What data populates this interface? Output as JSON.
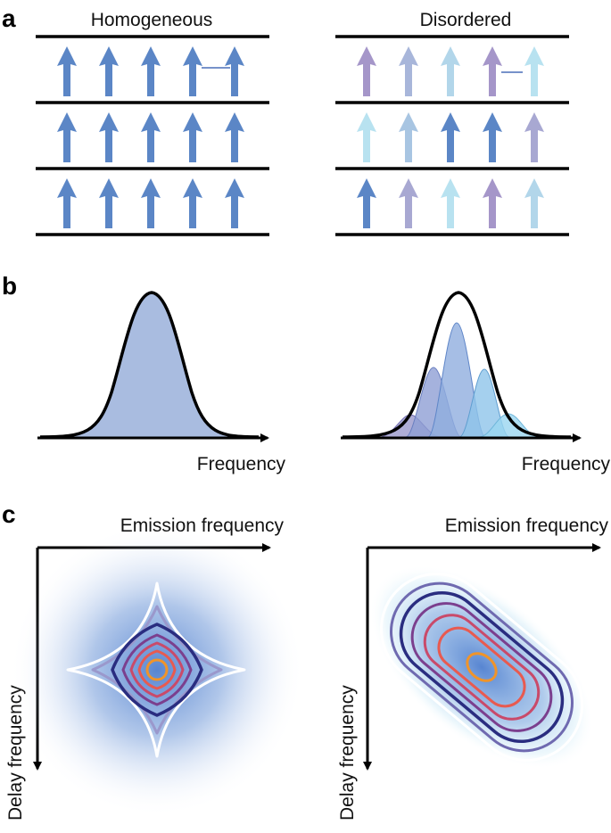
{
  "panels": {
    "a": {
      "letter": "a",
      "left_title": "Homogeneous",
      "right_title": "Disordered",
      "homogeneous_colors": [
        [
          "#5b86c6",
          "#5b86c6",
          "#5b86c6",
          "#5b86c6",
          "#5b86c6"
        ],
        [
          "#5b86c6",
          "#5b86c6",
          "#5b86c6",
          "#5b86c6",
          "#5b86c6"
        ],
        [
          "#5b86c6",
          "#5b86c6",
          "#5b86c6",
          "#5b86c6",
          "#5b86c6"
        ]
      ],
      "disordered_colors": [
        [
          "#a596c9",
          "#a8b6da",
          "#b2d6ea",
          "#a596c9",
          "#b8e2f0"
        ],
        [
          "#b8e2f0",
          "#a8c5e2",
          "#5b86c6",
          "#5b86c6",
          "#a8a8d2"
        ],
        [
          "#5b86c6",
          "#a8a8d2",
          "#b8e2f0",
          "#a596c9",
          "#b2d6ea"
        ]
      ]
    },
    "b": {
      "letter": "b",
      "left_xlabel": "Frequency",
      "right_xlabel": "Frequency",
      "fill_color": "#a9bce0",
      "component_colors": [
        "#9a98cc",
        "#8f9fd4",
        "#90aede",
        "#8ec4ea",
        "#9ad6f0"
      ]
    },
    "c": {
      "letter": "c",
      "left_xlabel": "Emission frequency",
      "left_ylabel": "Delay frequency",
      "right_xlabel": "Emission frequency",
      "right_ylabel": "Delay frequency",
      "contour_colors": [
        "#ffffff",
        "#9a98cc",
        "#2a2d80",
        "#7b3f8e",
        "#c94a6a",
        "#e85a50",
        "#f0942a"
      ],
      "glow_color": "#4f7fcf"
    }
  }
}
